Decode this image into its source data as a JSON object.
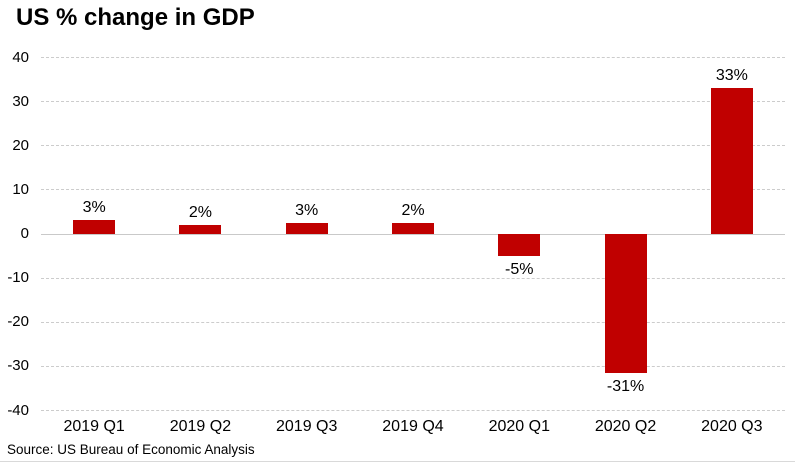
{
  "chart_data": {
    "type": "bar",
    "title": "US % change in GDP",
    "source": "Source: US Bureau of Economic Analysis",
    "categories": [
      "2019 Q1",
      "2019 Q2",
      "2019 Q3",
      "2019 Q4",
      "2020 Q1",
      "2020 Q2",
      "2020 Q3"
    ],
    "values": [
      3.1,
      2.0,
      2.6,
      2.4,
      -5.0,
      -31.4,
      33.1
    ],
    "bar_labels": [
      "3%",
      "2%",
      "3%",
      "2%",
      "-5%",
      "-31%",
      "33%"
    ],
    "xlabel": "",
    "ylabel": "",
    "ylim": [
      -40,
      40
    ],
    "yticks": [
      40,
      30,
      20,
      10,
      0,
      -10,
      -20,
      -30,
      -40
    ],
    "legend": "none",
    "grid": "horizontal-dashed",
    "bar_color": "#c00000",
    "gridline_color": "#cccccc",
    "zero_line_color": "#c9c9c9",
    "text_color": "#000000",
    "background_color": "#ffffff"
  }
}
